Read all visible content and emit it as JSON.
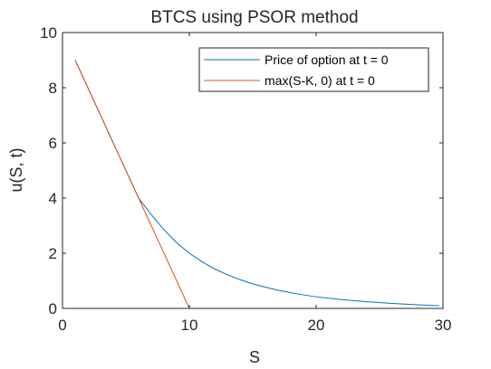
{
  "chart_data": {
    "type": "line",
    "title": "BTCS using PSOR method",
    "xlabel": "S",
    "ylabel": "u(S, t)",
    "xlim": [
      0,
      30
    ],
    "ylim": [
      0,
      10
    ],
    "xticks": [
      0,
      10,
      20,
      30
    ],
    "yticks": [
      0,
      2,
      4,
      6,
      8,
      10
    ],
    "grid": false,
    "legend_position": "top-right",
    "series": [
      {
        "name": "Price of option at t = 0",
        "color": "#0072BD",
        "x": [
          1,
          2,
          3,
          4,
          5,
          6,
          7,
          8,
          9,
          10,
          11,
          12,
          13,
          14,
          15,
          16,
          17,
          18,
          19,
          20,
          22,
          24,
          26,
          28,
          29.7
        ],
        "y": [
          9.0,
          8.0,
          7.0,
          6.0,
          5.0,
          4.0,
          3.4,
          2.85,
          2.38,
          2.0,
          1.69,
          1.43,
          1.22,
          1.04,
          0.89,
          0.77,
          0.66,
          0.57,
          0.49,
          0.42,
          0.32,
          0.24,
          0.18,
          0.13,
          0.1
        ]
      },
      {
        "name": "max(S-K, 0) at t = 0",
        "color": "#D95319",
        "x": [
          1,
          10,
          29.7
        ],
        "y": [
          9.0,
          0,
          0
        ]
      }
    ]
  }
}
